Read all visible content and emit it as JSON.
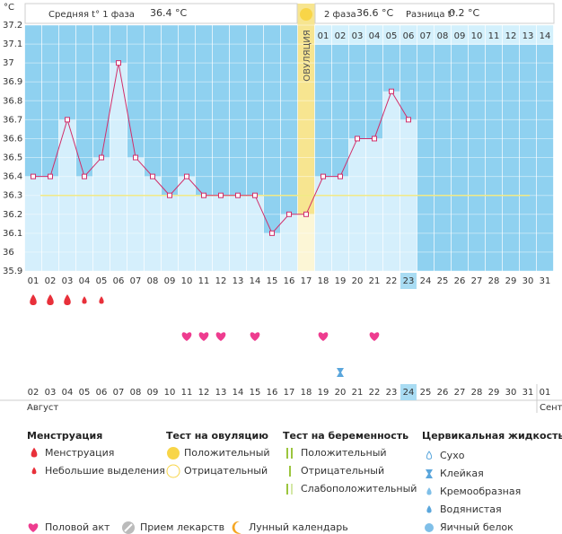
{
  "chart_data": {
    "type": "line",
    "unit": "°C",
    "header": {
      "phase1_label": "Средняя t° 1 фаза",
      "phase1_value": "36.4 °C",
      "phase2_label": "2 фаза",
      "phase2_value": "36.6 °C",
      "diff_label": "Разница t°",
      "diff_value": "0.2 °C"
    },
    "categories": [
      "01",
      "02",
      "03",
      "04",
      "05",
      "06",
      "07",
      "08",
      "09",
      "10",
      "11",
      "12",
      "13",
      "14",
      "15",
      "16",
      "17",
      "18",
      "19",
      "20",
      "21",
      "22",
      "23",
      "24",
      "25",
      "26",
      "27",
      "28",
      "29",
      "30",
      "31"
    ],
    "values": [
      36.4,
      36.4,
      36.7,
      36.4,
      36.5,
      37.0,
      36.5,
      36.4,
      36.3,
      36.4,
      36.3,
      36.3,
      36.3,
      36.3,
      36.1,
      36.2,
      36.2,
      36.4,
      36.4,
      36.6,
      36.6,
      36.85,
      36.7,
      null,
      null,
      null,
      null,
      null,
      null,
      null,
      null
    ],
    "color": "#d12e6a",
    "ylim": [
      35.9,
      37.2
    ],
    "yticks": [
      35.9,
      36,
      36.1,
      36.2,
      36.3,
      36.4,
      36.5,
      36.6,
      36.7,
      36.8,
      36.9,
      37,
      37.1,
      37.2
    ],
    "grid": true,
    "coverline": 36.3,
    "ovulation_index": 16,
    "ovulation_label": "ОВУЛЯЦИЯ",
    "luteal_days": [
      "01",
      "02",
      "03",
      "04",
      "05",
      "06",
      "07",
      "08",
      "09",
      "10",
      "11",
      "12",
      "13",
      "14"
    ],
    "today_index": 22,
    "menstruation_days": [
      0,
      1,
      2
    ],
    "spotting_days": [
      3,
      4
    ],
    "intercourse_days": [
      9,
      10,
      11,
      13,
      17,
      20
    ],
    "sticky_days": [
      18
    ],
    "calendar_dates": [
      "02",
      "03",
      "04",
      "05",
      "06",
      "07",
      "08",
      "09",
      "10",
      "11",
      "12",
      "13",
      "14",
      "15",
      "16",
      "17",
      "18",
      "19",
      "20",
      "21",
      "22",
      "23",
      "24",
      "25",
      "26",
      "27",
      "28",
      "29",
      "30",
      "31",
      "01"
    ],
    "calendar_red": [
      1,
      2,
      3,
      8,
      9,
      14,
      15,
      23,
      29,
      30
    ],
    "months": [
      "Август",
      "Сент"
    ]
  },
  "legend": {
    "columns": [
      {
        "title": "Менструация",
        "items": [
          "Менструация",
          "Небольшие выделения"
        ]
      },
      {
        "title": "Тест на овуляцию",
        "items": [
          "Положительный",
          "Отрицательный"
        ]
      },
      {
        "title": "Тест на беременность",
        "items": [
          "Положительный",
          "Отрицательный",
          "Слабоположительный"
        ]
      },
      {
        "title": "Цервикальная жидкость",
        "items": [
          "Сухо",
          "Клейкая",
          "Кремообразная",
          "Водянистая",
          "Яичный белок"
        ]
      }
    ],
    "extras": [
      "Половой акт",
      "Прием лекарств",
      "Лунный календарь"
    ]
  }
}
